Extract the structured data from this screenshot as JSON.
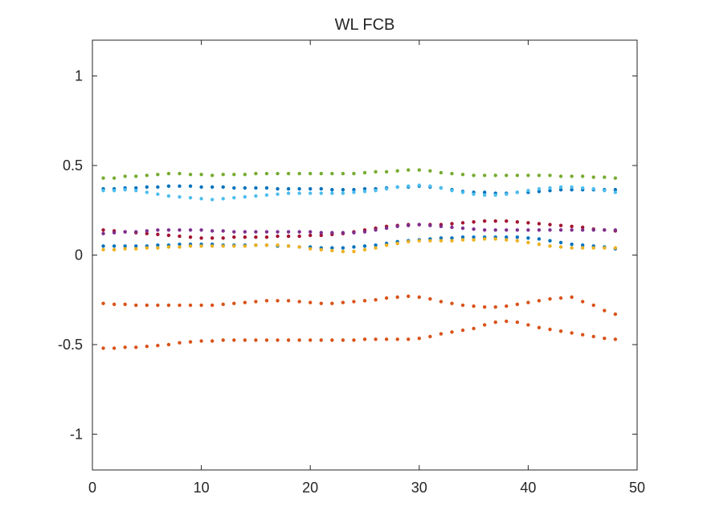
{
  "chart_data": {
    "type": "scatter",
    "title": "WL FCB",
    "xlabel": "",
    "ylabel": "",
    "xlim": [
      0,
      50
    ],
    "ylim": [
      -1.2,
      1.2
    ],
    "xticks": [
      0,
      10,
      20,
      30,
      40,
      50
    ],
    "xtick_labels": [
      "0",
      "10",
      "20",
      "30",
      "40",
      "50"
    ],
    "yticks": [
      -1,
      -0.5,
      0,
      0.5,
      1
    ],
    "ytick_labels": [
      "-1",
      "-0.5",
      "0",
      "0.5",
      "1"
    ],
    "grid": false,
    "legend": "none",
    "x": [
      1,
      2,
      3,
      4,
      5,
      6,
      7,
      8,
      9,
      10,
      11,
      12,
      13,
      14,
      15,
      16,
      17,
      18,
      19,
      20,
      21,
      22,
      23,
      24,
      25,
      26,
      27,
      28,
      29,
      30,
      31,
      32,
      33,
      34,
      35,
      36,
      37,
      38,
      39,
      40,
      41,
      42,
      43,
      44,
      45,
      46,
      47,
      48
    ],
    "series": [
      {
        "color": "#77AC30",
        "values": [
          0.43,
          0.43,
          0.44,
          0.44,
          0.445,
          0.45,
          0.455,
          0.455,
          0.45,
          0.45,
          0.445,
          0.45,
          0.45,
          0.45,
          0.455,
          0.455,
          0.455,
          0.455,
          0.455,
          0.455,
          0.455,
          0.455,
          0.455,
          0.455,
          0.46,
          0.465,
          0.465,
          0.47,
          0.475,
          0.475,
          0.47,
          0.46,
          0.455,
          0.45,
          0.445,
          0.445,
          0.445,
          0.445,
          0.445,
          0.445,
          0.445,
          0.445,
          0.44,
          0.44,
          0.44,
          0.435,
          0.435,
          0.43
        ]
      },
      {
        "color": "#0072BD",
        "values": [
          0.37,
          0.37,
          0.375,
          0.375,
          0.38,
          0.38,
          0.385,
          0.385,
          0.385,
          0.38,
          0.38,
          0.38,
          0.375,
          0.375,
          0.375,
          0.375,
          0.37,
          0.37,
          0.37,
          0.37,
          0.37,
          0.365,
          0.365,
          0.365,
          0.37,
          0.37,
          0.375,
          0.38,
          0.38,
          0.385,
          0.38,
          0.375,
          0.365,
          0.355,
          0.35,
          0.35,
          0.345,
          0.345,
          0.35,
          0.35,
          0.355,
          0.36,
          0.365,
          0.365,
          0.365,
          0.365,
          0.365,
          0.365
        ]
      },
      {
        "color": "#4DBEEE",
        "values": [
          0.36,
          0.36,
          0.365,
          0.36,
          0.35,
          0.34,
          0.33,
          0.325,
          0.32,
          0.315,
          0.31,
          0.315,
          0.32,
          0.325,
          0.33,
          0.335,
          0.34,
          0.345,
          0.345,
          0.345,
          0.345,
          0.345,
          0.345,
          0.35,
          0.355,
          0.36,
          0.37,
          0.38,
          0.385,
          0.39,
          0.385,
          0.375,
          0.36,
          0.35,
          0.34,
          0.335,
          0.335,
          0.34,
          0.35,
          0.36,
          0.37,
          0.375,
          0.38,
          0.38,
          0.375,
          0.37,
          0.36,
          0.35
        ]
      },
      {
        "color": "#A2142F",
        "values": [
          0.14,
          0.135,
          0.13,
          0.125,
          0.12,
          0.115,
          0.11,
          0.105,
          0.1,
          0.095,
          0.095,
          0.095,
          0.1,
          0.1,
          0.1,
          0.1,
          0.105,
          0.105,
          0.105,
          0.11,
          0.11,
          0.115,
          0.12,
          0.13,
          0.14,
          0.15,
          0.16,
          0.165,
          0.17,
          0.17,
          0.17,
          0.17,
          0.175,
          0.18,
          0.185,
          0.19,
          0.19,
          0.19,
          0.185,
          0.18,
          0.175,
          0.17,
          0.165,
          0.16,
          0.155,
          0.145,
          0.14,
          0.135
        ]
      },
      {
        "color": "#7E2F8E",
        "values": [
          0.12,
          0.125,
          0.13,
          0.13,
          0.135,
          0.14,
          0.14,
          0.14,
          0.14,
          0.14,
          0.135,
          0.135,
          0.13,
          0.13,
          0.13,
          0.13,
          0.13,
          0.13,
          0.13,
          0.13,
          0.125,
          0.125,
          0.125,
          0.125,
          0.13,
          0.14,
          0.15,
          0.16,
          0.165,
          0.17,
          0.165,
          0.16,
          0.155,
          0.15,
          0.145,
          0.14,
          0.14,
          0.14,
          0.14,
          0.14,
          0.14,
          0.14,
          0.14,
          0.14,
          0.14,
          0.14,
          0.14,
          0.14
        ]
      },
      {
        "color": "#0072BD",
        "values": [
          0.05,
          0.05,
          0.05,
          0.05,
          0.05,
          0.055,
          0.055,
          0.06,
          0.06,
          0.06,
          0.06,
          0.055,
          0.055,
          0.055,
          0.055,
          0.055,
          0.05,
          0.05,
          0.045,
          0.045,
          0.04,
          0.04,
          0.04,
          0.045,
          0.05,
          0.055,
          0.065,
          0.075,
          0.08,
          0.085,
          0.09,
          0.095,
          0.095,
          0.1,
          0.1,
          0.1,
          0.1,
          0.1,
          0.1,
          0.095,
          0.09,
          0.08,
          0.07,
          0.06,
          0.055,
          0.05,
          0.045,
          0.035
        ]
      },
      {
        "color": "#EDB120",
        "values": [
          0.03,
          0.03,
          0.035,
          0.035,
          0.04,
          0.04,
          0.045,
          0.045,
          0.05,
          0.05,
          0.05,
          0.05,
          0.05,
          0.05,
          0.055,
          0.055,
          0.055,
          0.05,
          0.045,
          0.035,
          0.03,
          0.025,
          0.02,
          0.02,
          0.03,
          0.04,
          0.055,
          0.065,
          0.075,
          0.08,
          0.08,
          0.08,
          0.08,
          0.085,
          0.085,
          0.09,
          0.09,
          0.085,
          0.08,
          0.07,
          0.06,
          0.05,
          0.045,
          0.04,
          0.04,
          0.04,
          0.04,
          0.04
        ]
      },
      {
        "color": "#D95319",
        "values": [
          -0.27,
          -0.275,
          -0.275,
          -0.28,
          -0.28,
          -0.28,
          -0.28,
          -0.28,
          -0.28,
          -0.28,
          -0.28,
          -0.275,
          -0.27,
          -0.265,
          -0.26,
          -0.255,
          -0.255,
          -0.255,
          -0.26,
          -0.265,
          -0.27,
          -0.27,
          -0.265,
          -0.26,
          -0.255,
          -0.25,
          -0.24,
          -0.235,
          -0.23,
          -0.235,
          -0.245,
          -0.26,
          -0.27,
          -0.28,
          -0.285,
          -0.29,
          -0.29,
          -0.285,
          -0.275,
          -0.265,
          -0.255,
          -0.245,
          -0.24,
          -0.235,
          -0.26,
          -0.28,
          -0.31,
          -0.33
        ]
      },
      {
        "color": "#D95319",
        "values": [
          -0.52,
          -0.52,
          -0.515,
          -0.515,
          -0.51,
          -0.505,
          -0.5,
          -0.49,
          -0.485,
          -0.48,
          -0.48,
          -0.475,
          -0.475,
          -0.475,
          -0.475,
          -0.475,
          -0.475,
          -0.475,
          -0.475,
          -0.475,
          -0.475,
          -0.475,
          -0.475,
          -0.475,
          -0.47,
          -0.47,
          -0.47,
          -0.47,
          -0.47,
          -0.465,
          -0.455,
          -0.44,
          -0.43,
          -0.42,
          -0.41,
          -0.39,
          -0.375,
          -0.37,
          -0.375,
          -0.39,
          -0.405,
          -0.415,
          -0.425,
          -0.435,
          -0.445,
          -0.455,
          -0.465,
          -0.47
        ]
      }
    ]
  }
}
